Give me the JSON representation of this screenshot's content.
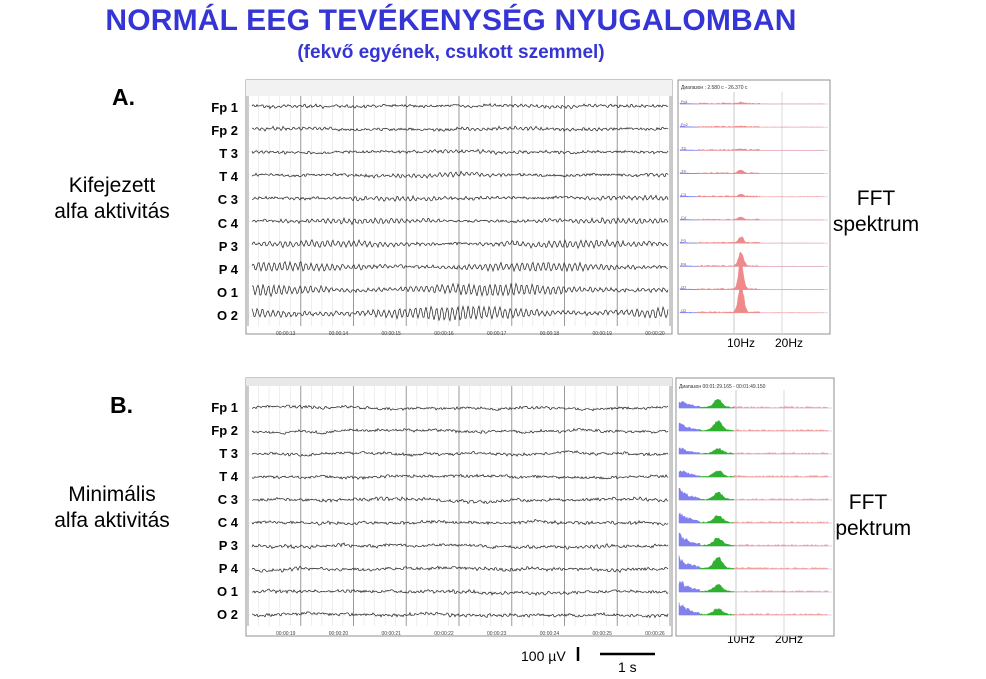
{
  "title": "NORMÁL EEG TEVÉKENYSÉG NYUGALOMBAN",
  "subtitle": "(fekvő egyének, csukott szemmel)",
  "channels": [
    "Fp 1",
    "Fp 2",
    "T 3",
    "T 4",
    "C 3",
    "C 4",
    "P 3",
    "P 4",
    "O 1",
    "O 2"
  ],
  "panels": [
    {
      "letter": "A.",
      "description": [
        "Kifejezett",
        "alfa aktivitás"
      ],
      "fft_label": [
        "FFT",
        "spektrum"
      ],
      "freq_labels": [
        "10Hz",
        "20Hz"
      ],
      "range_text": "Диапазон : 2.580 с - 26.370 с",
      "time_ticks": [
        "00:00:13",
        "00:00:14",
        "00:00:15",
        "00:00:16",
        "00:00:17",
        "00:00:18",
        "00:00:19",
        "00:00:20"
      ]
    },
    {
      "letter": "B.",
      "description": [
        "Minimális",
        "alfa aktivitás"
      ],
      "fft_label": [
        "FFT",
        "spektrum"
      ],
      "freq_labels": [
        "10Hz",
        "20Hz"
      ],
      "range_text": "Диапазон 00:01:29.165 - 00:01:49.150",
      "time_ticks": [
        "00:00:19",
        "00:00:20",
        "00:00:21",
        "00:00:22",
        "00:00:23",
        "00:00:24",
        "00:00:25",
        "00:00:26"
      ]
    }
  ],
  "scale": {
    "amplitude": "100 µV",
    "time": "1 s"
  },
  "colors": {
    "title": "#3535d6",
    "spectrum_low": "#8080ee",
    "spectrum_alpha_a": "#f08a8a",
    "spectrum_alpha_b": "#2fb02f",
    "spectrum_high": "#f0a0a0"
  }
}
